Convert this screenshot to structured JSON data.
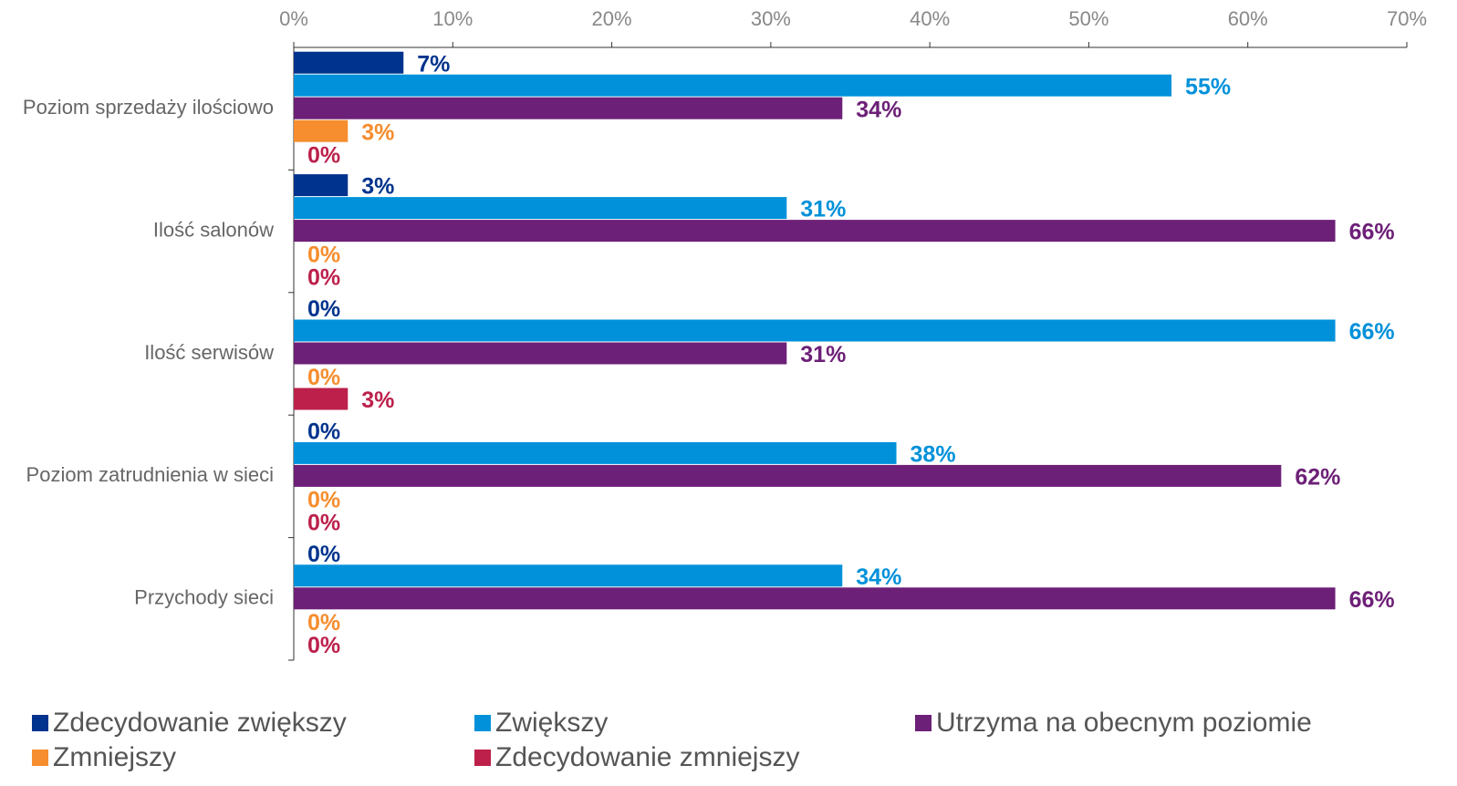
{
  "chart_data": {
    "type": "bar",
    "orientation": "horizontal",
    "categories": [
      "Poziom sprzedaży ilościowo",
      "Ilość salonów",
      "Ilość serwisów",
      "Poziom zatrudnienia w sieci",
      "Przychody sieci"
    ],
    "series": [
      {
        "name": "Zdecydowanie zwiększy",
        "color": "#00338d",
        "values": [
          6.9,
          3.4,
          0,
          0,
          0
        ],
        "value_labels": [
          "7%",
          "3%",
          "0%",
          "0%",
          "0%"
        ]
      },
      {
        "name": "Zwiększy",
        "color": "#0091da",
        "values": [
          55.2,
          31.0,
          65.5,
          37.9,
          34.5
        ],
        "value_labels": [
          "55%",
          "31%",
          "66%",
          "38%",
          "34%"
        ]
      },
      {
        "name": "Utrzyma na obecnym poziomie",
        "color": "#6d2077",
        "values": [
          34.5,
          65.5,
          31.0,
          62.1,
          65.5
        ],
        "value_labels": [
          "34%",
          "66%",
          "31%",
          "62%",
          "66%"
        ]
      },
      {
        "name": "Zmniejszy",
        "color": "#f68d2e",
        "values": [
          3.4,
          0,
          0,
          0,
          0
        ],
        "value_labels": [
          "3%",
          "0%",
          "0%",
          "0%",
          "0%"
        ]
      },
      {
        "name": "Zdecydowanie zmniejszy",
        "color": "#bc204b",
        "values": [
          0,
          0,
          3.4,
          0,
          0
        ],
        "value_labels": [
          "0%",
          "0%",
          "3%",
          "0%",
          "0%"
        ]
      }
    ],
    "xlim": [
      0,
      70
    ],
    "xticks": [
      {
        "value": 0,
        "label": "0%"
      },
      {
        "value": 10,
        "label": "10%"
      },
      {
        "value": 20,
        "label": "20%"
      },
      {
        "value": 30,
        "label": "30%"
      },
      {
        "value": 40,
        "label": "40%"
      },
      {
        "value": 50,
        "label": "50%"
      },
      {
        "value": 60,
        "label": "60%"
      },
      {
        "value": 70,
        "label": "70%"
      }
    ],
    "legend": "bottom"
  }
}
